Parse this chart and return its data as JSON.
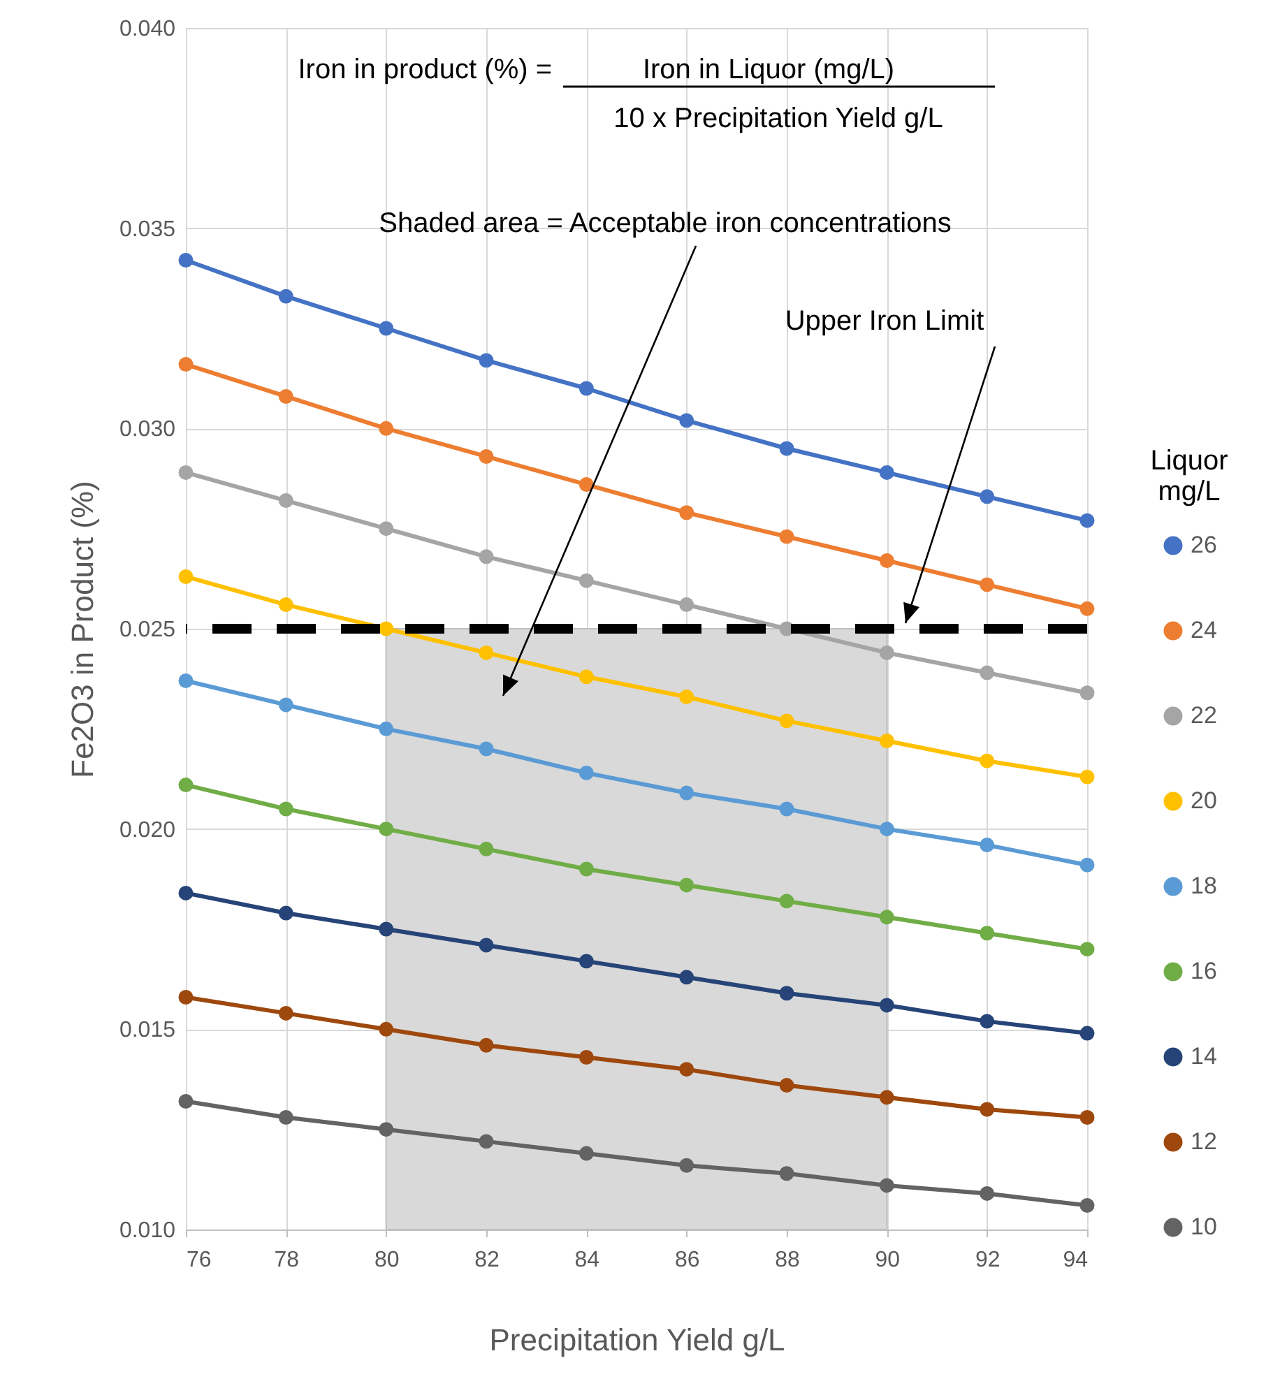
{
  "chart_data": {
    "type": "line",
    "xlabel": "Precipitation Yield g/L",
    "ylabel": "Fe2O3 in Product (%)",
    "legend_title": "Liquor mg/L",
    "x": [
      76,
      78,
      80,
      82,
      84,
      86,
      88,
      90,
      92,
      94
    ],
    "series": [
      {
        "name": "26",
        "color": "#4472c4",
        "values": [
          0.0342,
          0.0333,
          0.0325,
          0.0317,
          0.031,
          0.0302,
          0.0295,
          0.0289,
          0.0283,
          0.0277
        ]
      },
      {
        "name": "24",
        "color": "#ed7d31",
        "values": [
          0.0316,
          0.0308,
          0.03,
          0.0293,
          0.0286,
          0.0279,
          0.0273,
          0.0267,
          0.0261,
          0.0255
        ]
      },
      {
        "name": "22",
        "color": "#a5a5a5",
        "values": [
          0.0289,
          0.0282,
          0.0275,
          0.0268,
          0.0262,
          0.0256,
          0.025,
          0.0244,
          0.0239,
          0.0234
        ]
      },
      {
        "name": "20",
        "color": "#ffc000",
        "values": [
          0.0263,
          0.0256,
          0.025,
          0.0244,
          0.0238,
          0.0233,
          0.0227,
          0.0222,
          0.0217,
          0.0213
        ]
      },
      {
        "name": "18",
        "color": "#5b9bd5",
        "values": [
          0.0237,
          0.0231,
          0.0225,
          0.022,
          0.0214,
          0.0209,
          0.0205,
          0.02,
          0.0196,
          0.0191
        ]
      },
      {
        "name": "16",
        "color": "#70ad47",
        "values": [
          0.0211,
          0.0205,
          0.02,
          0.0195,
          0.019,
          0.0186,
          0.0182,
          0.0178,
          0.0174,
          0.017
        ]
      },
      {
        "name": "14",
        "color": "#264478",
        "values": [
          0.0184,
          0.0179,
          0.0175,
          0.0171,
          0.0167,
          0.0163,
          0.0159,
          0.0156,
          0.0152,
          0.0149
        ]
      },
      {
        "name": "12",
        "color": "#9e480e",
        "values": [
          0.0158,
          0.0154,
          0.015,
          0.0146,
          0.0143,
          0.014,
          0.0136,
          0.0133,
          0.013,
          0.0128
        ]
      },
      {
        "name": "10",
        "color": "#636363",
        "values": [
          0.0132,
          0.0128,
          0.0125,
          0.0122,
          0.0119,
          0.0116,
          0.0114,
          0.0111,
          0.0109,
          0.0106
        ]
      }
    ],
    "xlim": [
      76,
      94
    ],
    "xticks": [
      76,
      78,
      80,
      82,
      84,
      86,
      88,
      90,
      92,
      94
    ],
    "ylim": [
      0.01,
      0.04
    ],
    "yticks": [
      {
        "value": 0.01,
        "label": "0.010"
      },
      {
        "value": 0.015,
        "label": "0.015"
      },
      {
        "value": 0.02,
        "label": "0.020"
      },
      {
        "value": 0.025,
        "label": "0.025"
      },
      {
        "value": 0.03,
        "label": "0.030"
      },
      {
        "value": 0.035,
        "label": "0.035"
      },
      {
        "value": 0.04,
        "label": "0.040"
      }
    ],
    "ref_lines": [
      {
        "axis": "y",
        "value": 0.025,
        "label": "Upper Iron Limit",
        "color": "#000000",
        "line_style": "dashed"
      }
    ],
    "bands": [
      {
        "axis": "x",
        "from": 80,
        "to": 90,
        "label": "Shaded area = Acceptable iron concentrations",
        "color": "#d9d9d9"
      }
    ],
    "annotations": [
      "Iron in product (%) =",
      "Iron in Liquor (mg/L)",
      "10  x  Precipitation Yield g/L"
    ],
    "grid": true,
    "legend": "right",
    "marker": "circle",
    "line_style": "solid"
  }
}
